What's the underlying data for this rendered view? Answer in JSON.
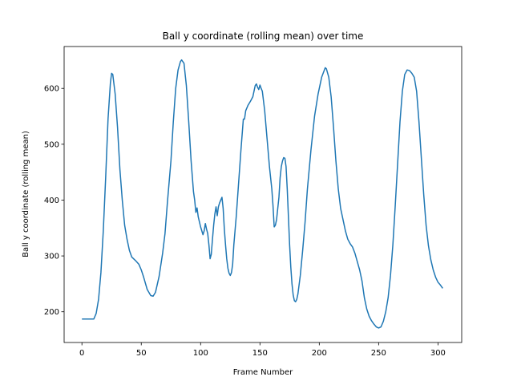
{
  "chart_data": {
    "type": "line",
    "title": "Ball y coordinate (rolling mean) over time",
    "xlabel": "Frame Number",
    "ylabel": "Ball y coordinate (rolling mean)",
    "xlim": [
      -15,
      320
    ],
    "ylim": [
      145,
      675
    ],
    "xticks": [
      0,
      50,
      100,
      150,
      200,
      250,
      300
    ],
    "yticks": [
      200,
      300,
      400,
      500,
      600
    ],
    "grid": false,
    "legend": "none",
    "series": [
      {
        "color": "#1f77b4",
        "points": [
          [
            0,
            187
          ],
          [
            5,
            187
          ],
          [
            10,
            187
          ],
          [
            12,
            197
          ],
          [
            14,
            222
          ],
          [
            16,
            270
          ],
          [
            18,
            345
          ],
          [
            20,
            440
          ],
          [
            22,
            545
          ],
          [
            24,
            610
          ],
          [
            25,
            627
          ],
          [
            26,
            625
          ],
          [
            28,
            590
          ],
          [
            30,
            530
          ],
          [
            32,
            455
          ],
          [
            34,
            400
          ],
          [
            36,
            355
          ],
          [
            38,
            330
          ],
          [
            40,
            310
          ],
          [
            42,
            298
          ],
          [
            45,
            292
          ],
          [
            48,
            285
          ],
          [
            50,
            275
          ],
          [
            52,
            262
          ],
          [
            55,
            240
          ],
          [
            58,
            229
          ],
          [
            60,
            228
          ],
          [
            62,
            235
          ],
          [
            65,
            263
          ],
          [
            68,
            305
          ],
          [
            70,
            340
          ],
          [
            72,
            395
          ],
          [
            75,
            470
          ],
          [
            77,
            540
          ],
          [
            79,
            600
          ],
          [
            81,
            633
          ],
          [
            83,
            648
          ],
          [
            84,
            651
          ],
          [
            86,
            645
          ],
          [
            88,
            605
          ],
          [
            90,
            540
          ],
          [
            92,
            470
          ],
          [
            94,
            415
          ],
          [
            95,
            400
          ],
          [
            96,
            378
          ],
          [
            97,
            386
          ],
          [
            98,
            370
          ],
          [
            100,
            352
          ],
          [
            102,
            338
          ],
          [
            103,
            345
          ],
          [
            104,
            358
          ],
          [
            105,
            348
          ],
          [
            106,
            340
          ],
          [
            107,
            320
          ],
          [
            108,
            295
          ],
          [
            109,
            303
          ],
          [
            110,
            330
          ],
          [
            111,
            355
          ],
          [
            112,
            375
          ],
          [
            113,
            388
          ],
          [
            114,
            372
          ],
          [
            115,
            388
          ],
          [
            116,
            395
          ],
          [
            117,
            400
          ],
          [
            118,
            405
          ],
          [
            119,
            385
          ],
          [
            120,
            348
          ],
          [
            121,
            320
          ],
          [
            122,
            295
          ],
          [
            123,
            278
          ],
          [
            124,
            269
          ],
          [
            125,
            265
          ],
          [
            126,
            270
          ],
          [
            127,
            285
          ],
          [
            128,
            320
          ],
          [
            130,
            370
          ],
          [
            132,
            430
          ],
          [
            134,
            490
          ],
          [
            136,
            545
          ],
          [
            137,
            545
          ],
          [
            138,
            560
          ],
          [
            140,
            570
          ],
          [
            142,
            577
          ],
          [
            144,
            585
          ],
          [
            145,
            595
          ],
          [
            146,
            605
          ],
          [
            147,
            608
          ],
          [
            148,
            602
          ],
          [
            149,
            598
          ],
          [
            150,
            606
          ],
          [
            151,
            600
          ],
          [
            152,
            595
          ],
          [
            154,
            560
          ],
          [
            156,
            510
          ],
          [
            158,
            460
          ],
          [
            160,
            420
          ],
          [
            161,
            390
          ],
          [
            162,
            352
          ],
          [
            163,
            355
          ],
          [
            164,
            365
          ],
          [
            165,
            385
          ],
          [
            166,
            405
          ],
          [
            167,
            440
          ],
          [
            168,
            460
          ],
          [
            169,
            470
          ],
          [
            170,
            476
          ],
          [
            171,
            475
          ],
          [
            172,
            460
          ],
          [
            173,
            420
          ],
          [
            174,
            370
          ],
          [
            175,
            320
          ],
          [
            176,
            280
          ],
          [
            177,
            250
          ],
          [
            178,
            230
          ],
          [
            179,
            220
          ],
          [
            180,
            218
          ],
          [
            181,
            222
          ],
          [
            182,
            232
          ],
          [
            184,
            265
          ],
          [
            186,
            310
          ],
          [
            188,
            360
          ],
          [
            190,
            420
          ],
          [
            193,
            490
          ],
          [
            196,
            550
          ],
          [
            199,
            590
          ],
          [
            202,
            620
          ],
          [
            205,
            637
          ],
          [
            206,
            635
          ],
          [
            208,
            620
          ],
          [
            210,
            585
          ],
          [
            212,
            530
          ],
          [
            214,
            470
          ],
          [
            216,
            420
          ],
          [
            218,
            385
          ],
          [
            220,
            365
          ],
          [
            222,
            345
          ],
          [
            224,
            330
          ],
          [
            226,
            322
          ],
          [
            228,
            316
          ],
          [
            230,
            305
          ],
          [
            232,
            290
          ],
          [
            234,
            275
          ],
          [
            236,
            255
          ],
          [
            238,
            225
          ],
          [
            240,
            205
          ],
          [
            242,
            192
          ],
          [
            244,
            184
          ],
          [
            246,
            178
          ],
          [
            248,
            173
          ],
          [
            250,
            171
          ],
          [
            252,
            173
          ],
          [
            254,
            183
          ],
          [
            256,
            200
          ],
          [
            258,
            225
          ],
          [
            260,
            265
          ],
          [
            262,
            320
          ],
          [
            264,
            390
          ],
          [
            266,
            465
          ],
          [
            268,
            540
          ],
          [
            270,
            595
          ],
          [
            272,
            625
          ],
          [
            274,
            633
          ],
          [
            276,
            632
          ],
          [
            278,
            627
          ],
          [
            280,
            620
          ],
          [
            282,
            595
          ],
          [
            284,
            540
          ],
          [
            286,
            475
          ],
          [
            288,
            410
          ],
          [
            290,
            355
          ],
          [
            292,
            318
          ],
          [
            294,
            293
          ],
          [
            296,
            275
          ],
          [
            298,
            262
          ],
          [
            300,
            253
          ],
          [
            302,
            248
          ],
          [
            304,
            242
          ]
        ]
      }
    ]
  }
}
